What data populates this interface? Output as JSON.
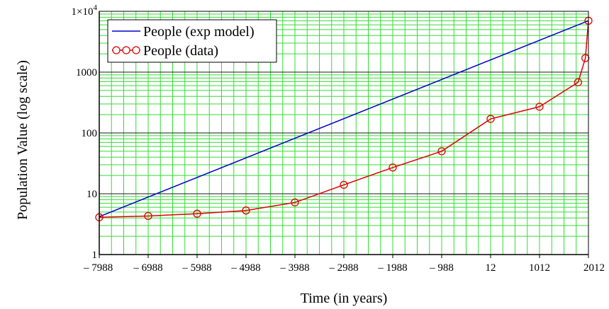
{
  "chart_data": {
    "type": "line",
    "title": "",
    "xlabel": "Time (in years)",
    "ylabel": "Population Value (log scale)",
    "y_scale": "log",
    "xlim": [
      -7988,
      2012
    ],
    "ylim": [
      1,
      10000
    ],
    "grid": true,
    "legend_position": "top-left",
    "x_tick_labels": [
      "– 7988",
      "– 6988",
      "– 5988",
      "– 4988",
      "– 3988",
      "– 2988",
      "– 1988",
      "– 988",
      "12",
      "1012",
      "2012"
    ],
    "x_tick_values": [
      -7988,
      -6988,
      -5988,
      -4988,
      -3988,
      -2988,
      -1988,
      -988,
      12,
      1012,
      2012
    ],
    "y_tick_labels": [
      "1",
      "10",
      "100",
      "1000"
    ],
    "y_tick_values": [
      1,
      10,
      100,
      1000
    ],
    "y_top_label": {
      "base": "1×10",
      "exp": "4"
    },
    "y_top_value": 10000,
    "colors": {
      "exp_model": "#0000cc",
      "data": "#e00000",
      "grid": "#33dd33",
      "axis": "#000000"
    },
    "series": [
      {
        "name": "People (exp model)",
        "style": "line",
        "x": [
          -7988,
          2012
        ],
        "y": [
          4.2,
          7000
        ]
      },
      {
        "name": "People (data)",
        "style": "line-circle",
        "x": [
          -7988,
          -6988,
          -5988,
          -4988,
          -3988,
          -2988,
          -1988,
          -988,
          12,
          1012,
          1800,
          1950,
          2012
        ],
        "y": [
          4.1,
          4.3,
          4.7,
          5.3,
          7.2,
          14,
          27,
          50,
          170,
          270,
          680,
          1700,
          7000
        ]
      }
    ]
  }
}
